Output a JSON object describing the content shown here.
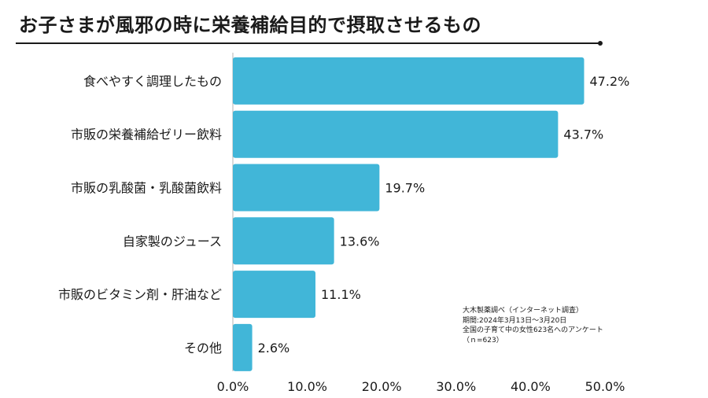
{
  "title": "お子さまが風邪の時に栄養補給目的で摂取させるもの",
  "source_note": [
    "大木製薬調べ（インターネット調査）",
    "期間:2024年3月13日〜3月20日",
    "全国の子育て中の女性623名へのアンケート",
    "（ｎ=623）"
  ],
  "chart_data": {
    "type": "bar",
    "orientation": "horizontal",
    "categories": [
      "食べやすく調理したもの",
      "市販の栄養補給ゼリー飲料",
      "市販の乳酸菌・乳酸菌飲料",
      "自家製のジュース",
      "市販のビタミン剤・肝油など",
      "その他"
    ],
    "values": [
      47.2,
      43.7,
      19.7,
      13.6,
      11.1,
      2.6
    ],
    "value_labels": [
      "47.2%",
      "43.7%",
      "19.7%",
      "13.6%",
      "11.1%",
      "2.6%"
    ],
    "xticks": [
      0,
      10,
      20,
      30,
      40,
      50
    ],
    "xtick_labels": [
      "0.0%",
      "10.0%",
      "20.0%",
      "30.0%",
      "40.0%",
      "50.0%"
    ],
    "xlim": [
      0,
      50
    ],
    "grid": false,
    "bar_color": "#41B6D8"
  }
}
